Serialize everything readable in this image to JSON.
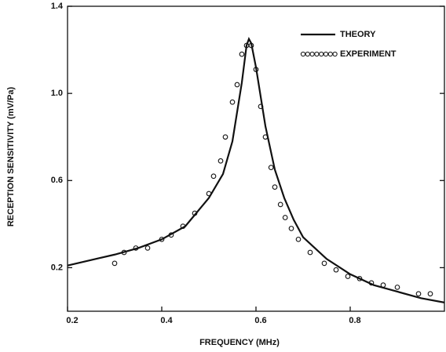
{
  "chart_data": {
    "type": "line",
    "x_label": "FREQUENCY (MHz)",
    "y_label": "RECEPTION SENSITIVITY (mV/Pa)",
    "xlim": [
      0.2,
      1.0
    ],
    "ylim": [
      0,
      1.4
    ],
    "xticks": [
      0.2,
      0.4,
      0.6,
      0.8
    ],
    "yticks": [
      0.2,
      0.6,
      {
        "value": 1,
        "label": "1.0"
      },
      1.4
    ],
    "legend": "upper right",
    "series": [
      {
        "name": "THEORY",
        "type": "line",
        "color": "#111111",
        "x": [
          0.2,
          0.25,
          0.3,
          0.35,
          0.4,
          0.45,
          0.5,
          0.53,
          0.55,
          0.57,
          0.58,
          0.585,
          0.59,
          0.6,
          0.62,
          0.64,
          0.66,
          0.68,
          0.7,
          0.75,
          0.8,
          0.85,
          0.9,
          0.95,
          1.0
        ],
        "values": [
          0.21,
          0.235,
          0.26,
          0.29,
          0.33,
          0.39,
          0.52,
          0.63,
          0.78,
          1.05,
          1.22,
          1.25,
          1.23,
          1.12,
          0.85,
          0.65,
          0.52,
          0.42,
          0.34,
          0.24,
          0.17,
          0.12,
          0.09,
          0.06,
          0.04
        ]
      },
      {
        "name": "EXPERIMENT",
        "type": "scatter",
        "color": "#111111",
        "x": [
          0.3,
          0.32,
          0.345,
          0.37,
          0.4,
          0.42,
          0.445,
          0.47,
          0.5,
          0.51,
          0.525,
          0.535,
          0.55,
          0.56,
          0.57,
          0.58,
          0.59,
          0.6,
          0.61,
          0.62,
          0.632,
          0.64,
          0.652,
          0.662,
          0.675,
          0.69,
          0.715,
          0.745,
          0.77,
          0.795,
          0.82,
          0.845,
          0.87,
          0.9,
          0.945,
          0.97
        ],
        "values": [
          0.22,
          0.27,
          0.29,
          0.29,
          0.33,
          0.35,
          0.39,
          0.45,
          0.54,
          0.62,
          0.69,
          0.8,
          0.96,
          1.04,
          1.18,
          1.22,
          1.22,
          1.11,
          0.94,
          0.8,
          0.66,
          0.57,
          0.49,
          0.43,
          0.38,
          0.33,
          0.27,
          0.22,
          0.19,
          0.16,
          0.15,
          0.13,
          0.12,
          0.11,
          0.08,
          0.08
        ]
      }
    ]
  }
}
